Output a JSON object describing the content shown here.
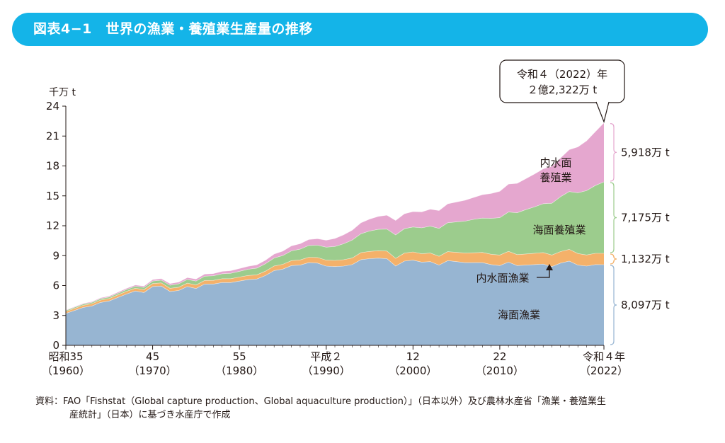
{
  "header": {
    "title": "図表4−1　世界の漁業・養殖業生産量の推移"
  },
  "chart_data": {
    "type": "area",
    "stacked": true,
    "y_unit": "千万 t",
    "ylim": [
      0,
      24
    ],
    "yticks": [
      0,
      3,
      6,
      9,
      12,
      15,
      18,
      21,
      24
    ],
    "x_range": [
      1960,
      2022
    ],
    "xticks": [
      {
        "year": 1960,
        "line1": "昭和35",
        "line2": "（1960）"
      },
      {
        "year": 1970,
        "line1": "45",
        "line2": "（1970）"
      },
      {
        "year": 1980,
        "line1": "55",
        "line2": "（1980）"
      },
      {
        "year": 1990,
        "line1": "平成２",
        "line2": "（1990）"
      },
      {
        "year": 2000,
        "line1": "12",
        "line2": "（2000）"
      },
      {
        "year": 2010,
        "line1": "22",
        "line2": "（2010）"
      },
      {
        "year": 2022,
        "line1": "令和４年",
        "line2": "（2022）"
      }
    ],
    "x": [
      1960,
      1961,
      1962,
      1963,
      1964,
      1965,
      1966,
      1967,
      1968,
      1969,
      1970,
      1971,
      1972,
      1973,
      1974,
      1975,
      1976,
      1977,
      1978,
      1979,
      1980,
      1981,
      1982,
      1983,
      1984,
      1985,
      1986,
      1987,
      1988,
      1989,
      1990,
      1991,
      1992,
      1993,
      1994,
      1995,
      1996,
      1997,
      1998,
      1999,
      2000,
      2001,
      2002,
      2003,
      2004,
      2005,
      2006,
      2007,
      2008,
      2009,
      2010,
      2011,
      2012,
      2013,
      2014,
      2015,
      2016,
      2017,
      2018,
      2019,
      2020,
      2021,
      2022
    ],
    "series": [
      {
        "name": "海面漁業",
        "color": "#97b5d2",
        "values": [
          3.2,
          3.5,
          3.8,
          3.95,
          4.3,
          4.45,
          4.8,
          5.15,
          5.45,
          5.3,
          5.9,
          5.95,
          5.4,
          5.5,
          5.9,
          5.7,
          6.15,
          6.15,
          6.3,
          6.3,
          6.45,
          6.6,
          6.65,
          7.0,
          7.5,
          7.65,
          8.0,
          8.05,
          8.3,
          8.25,
          7.95,
          7.9,
          7.95,
          8.1,
          8.6,
          8.7,
          8.75,
          8.7,
          7.95,
          8.45,
          8.55,
          8.35,
          8.4,
          8.05,
          8.5,
          8.4,
          8.3,
          8.3,
          8.3,
          8.1,
          8.0,
          8.35,
          8.0,
          8.05,
          8.1,
          8.15,
          7.9,
          8.25,
          8.45,
          8.05,
          7.95,
          8.1,
          8.097
        ]
      },
      {
        "name": "内水面漁業",
        "color": "#f4b16a",
        "values": [
          0.2,
          0.21,
          0.22,
          0.23,
          0.24,
          0.25,
          0.26,
          0.27,
          0.28,
          0.29,
          0.3,
          0.31,
          0.32,
          0.33,
          0.34,
          0.35,
          0.36,
          0.37,
          0.38,
          0.39,
          0.4,
          0.41,
          0.42,
          0.44,
          0.46,
          0.48,
          0.5,
          0.52,
          0.54,
          0.56,
          0.6,
          0.62,
          0.64,
          0.66,
          0.7,
          0.72,
          0.74,
          0.76,
          0.78,
          0.8,
          0.82,
          0.84,
          0.86,
          0.88,
          0.9,
          0.93,
          0.96,
          0.99,
          1.02,
          1.04,
          1.06,
          1.08,
          1.1,
          1.12,
          1.14,
          1.16,
          1.16,
          1.16,
          1.18,
          1.16,
          1.12,
          1.13,
          1.132
        ]
      },
      {
        "name": "海面養殖業",
        "color": "#9ccc8d",
        "values": [
          0.1,
          0.11,
          0.12,
          0.13,
          0.14,
          0.15,
          0.16,
          0.18,
          0.2,
          0.22,
          0.25,
          0.28,
          0.31,
          0.34,
          0.37,
          0.4,
          0.43,
          0.46,
          0.5,
          0.54,
          0.58,
          0.62,
          0.68,
          0.74,
          0.8,
          0.88,
          0.98,
          1.08,
          1.18,
          1.24,
          1.3,
          1.4,
          1.6,
          1.8,
          1.9,
          2.05,
          2.15,
          2.2,
          2.35,
          2.45,
          2.5,
          2.6,
          2.7,
          2.8,
          2.9,
          3.05,
          3.2,
          3.35,
          3.45,
          3.6,
          3.75,
          3.95,
          4.2,
          4.45,
          4.65,
          4.9,
          5.2,
          5.5,
          5.8,
          6.1,
          6.45,
          6.8,
          7.175
        ]
      },
      {
        "name": "内水面養殖業",
        "color": "#e5a7cf",
        "values": [
          0.05,
          0.06,
          0.07,
          0.08,
          0.09,
          0.1,
          0.11,
          0.12,
          0.13,
          0.14,
          0.15,
          0.16,
          0.17,
          0.18,
          0.19,
          0.2,
          0.21,
          0.22,
          0.24,
          0.26,
          0.28,
          0.3,
          0.33,
          0.36,
          0.4,
          0.45,
          0.5,
          0.55,
          0.6,
          0.65,
          0.7,
          0.8,
          0.9,
          1.0,
          1.1,
          1.2,
          1.3,
          1.4,
          1.45,
          1.5,
          1.55,
          1.6,
          1.7,
          1.8,
          1.9,
          2.0,
          2.1,
          2.2,
          2.35,
          2.5,
          2.65,
          2.8,
          2.95,
          3.1,
          3.3,
          3.5,
          3.7,
          3.9,
          4.2,
          4.6,
          5.0,
          5.4,
          5.918
        ]
      }
    ],
    "series_labels": [
      {
        "series": "海面漁業",
        "line1": "海面漁業",
        "line2": ""
      },
      {
        "series": "内水面漁業",
        "line1": "内水面漁業",
        "line2": ""
      },
      {
        "series": "海面養殖業",
        "line1": "海面養殖業",
        "line2": ""
      },
      {
        "series": "内水面養殖業",
        "line1": "内水面",
        "line2": "養殖業"
      }
    ],
    "right_brackets": [
      {
        "series": "海面漁業",
        "label": "8,097万 t"
      },
      {
        "series": "内水面漁業",
        "label": "1,132万 t"
      },
      {
        "series": "海面養殖業",
        "label": "7,175万 t"
      },
      {
        "series": "内水面養殖業",
        "label": "5,918万 t"
      }
    ],
    "callout": {
      "year": 2022,
      "line1": "令和４（2022）年",
      "line2": "２億2,322万 t"
    }
  },
  "source": {
    "line1": "資料：FAO「Fishstat（Global capture production、Global aquaculture production）」（日本以外）及び農林水産省「漁業・養殖業生",
    "line2": "産統計」（日本）に基づき水産庁で作成"
  }
}
